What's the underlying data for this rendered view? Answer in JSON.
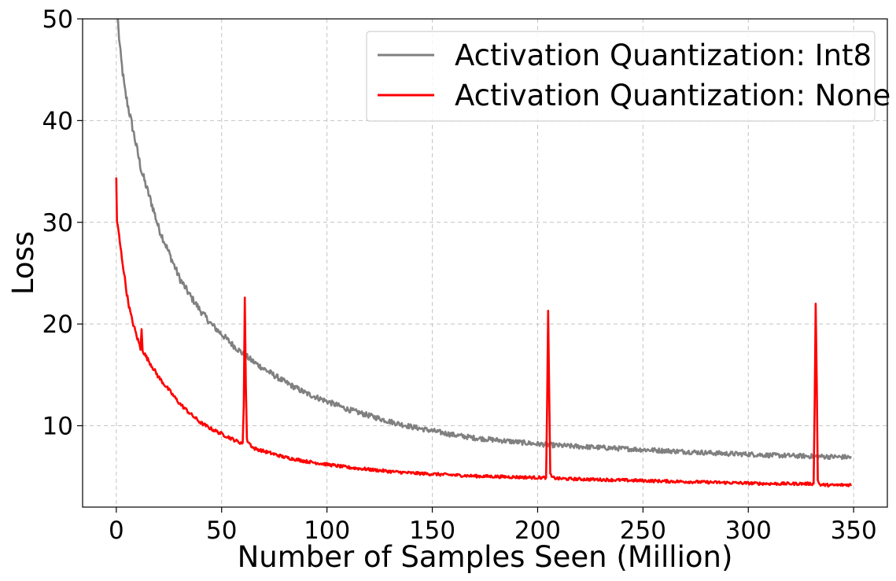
{
  "chart_data": {
    "type": "line",
    "title": "",
    "xlabel": "Number of Samples Seen (Million)",
    "ylabel": "Loss",
    "xlim": [
      -16,
      366
    ],
    "ylim": [
      2,
      50
    ],
    "xticks": [
      0,
      50,
      100,
      150,
      200,
      250,
      300,
      350
    ],
    "yticks": [
      10,
      20,
      30,
      40,
      50
    ],
    "xtick_labels": [
      "0",
      "50",
      "100",
      "150",
      "200",
      "250",
      "300",
      "350"
    ],
    "ytick_labels": [
      "10",
      "20",
      "30",
      "40",
      "50"
    ],
    "grid": true,
    "legend_position": "top-right",
    "series": [
      {
        "name": "Activation Quantization: Int8",
        "color": "#808080",
        "noise": 0.18,
        "points": [
          [
            0.5,
            51
          ],
          [
            1,
            49
          ],
          [
            2,
            46.5
          ],
          [
            4,
            43
          ],
          [
            6,
            41
          ],
          [
            8,
            39
          ],
          [
            10,
            37
          ],
          [
            12,
            35
          ],
          [
            15,
            33
          ],
          [
            18,
            31
          ],
          [
            20,
            29.5
          ],
          [
            25,
            27
          ],
          [
            30,
            24.5
          ],
          [
            35,
            22.8
          ],
          [
            40,
            21.3
          ],
          [
            45,
            20
          ],
          [
            50,
            19
          ],
          [
            55,
            18
          ],
          [
            60,
            17.1
          ],
          [
            65,
            16.3
          ],
          [
            70,
            15.6
          ],
          [
            80,
            14.3
          ],
          [
            90,
            13.2
          ],
          [
            100,
            12.4
          ],
          [
            110,
            11.6
          ],
          [
            120,
            11
          ],
          [
            130,
            10.4
          ],
          [
            140,
            9.9
          ],
          [
            150,
            9.5
          ],
          [
            160,
            9.1
          ],
          [
            170,
            8.8
          ],
          [
            180,
            8.6
          ],
          [
            190,
            8.4
          ],
          [
            200,
            8.2
          ],
          [
            210,
            8.05
          ],
          [
            220,
            7.95
          ],
          [
            230,
            7.85
          ],
          [
            240,
            7.75
          ],
          [
            250,
            7.65
          ],
          [
            260,
            7.55
          ],
          [
            270,
            7.45
          ],
          [
            280,
            7.35
          ],
          [
            290,
            7.25
          ],
          [
            300,
            7.2
          ],
          [
            310,
            7.1
          ],
          [
            320,
            7.05
          ],
          [
            330,
            7.0
          ],
          [
            340,
            6.95
          ],
          [
            349,
            6.9
          ]
        ]
      },
      {
        "name": "Activation Quantization: None",
        "color": "#ff0000",
        "noise": 0.12,
        "points": [
          [
            0,
            34.4
          ],
          [
            0.3,
            30
          ],
          [
            1,
            29.2
          ],
          [
            2,
            27.5
          ],
          [
            3,
            26
          ],
          [
            4,
            24.5
          ],
          [
            5,
            23
          ],
          [
            6,
            21.8
          ],
          [
            7,
            20.8
          ],
          [
            8,
            20
          ],
          [
            9,
            19.3
          ],
          [
            10,
            18.6
          ],
          [
            11,
            18
          ],
          [
            11.5,
            17.4
          ],
          [
            12,
            19.6
          ],
          [
            12.5,
            17.5
          ],
          [
            13,
            17.2
          ],
          [
            15,
            16.5
          ],
          [
            18,
            15.5
          ],
          [
            20,
            14.8
          ],
          [
            25,
            13.5
          ],
          [
            30,
            12.2
          ],
          [
            35,
            11.2
          ],
          [
            40,
            10.3
          ],
          [
            45,
            9.7
          ],
          [
            50,
            9.2
          ],
          [
            55,
            8.7
          ],
          [
            58,
            8.4
          ],
          [
            60,
            8.3
          ],
          [
            60.5,
            12
          ],
          [
            61,
            22.6
          ],
          [
            61.5,
            14
          ],
          [
            62,
            8.6
          ],
          [
            65,
            7.8
          ],
          [
            70,
            7.5
          ],
          [
            80,
            6.9
          ],
          [
            90,
            6.5
          ],
          [
            100,
            6.2
          ],
          [
            110,
            5.9
          ],
          [
            120,
            5.7
          ],
          [
            130,
            5.5
          ],
          [
            140,
            5.35
          ],
          [
            150,
            5.25
          ],
          [
            160,
            5.15
          ],
          [
            170,
            5.05
          ],
          [
            180,
            5.0
          ],
          [
            190,
            4.95
          ],
          [
            200,
            4.9
          ],
          [
            204,
            4.9
          ],
          [
            204.5,
            12
          ],
          [
            205,
            21.3
          ],
          [
            205.5,
            13
          ],
          [
            206,
            5.2
          ],
          [
            207,
            4.9
          ],
          [
            210,
            4.8
          ],
          [
            220,
            4.75
          ],
          [
            230,
            4.7
          ],
          [
            240,
            4.65
          ],
          [
            250,
            4.6
          ],
          [
            260,
            4.55
          ],
          [
            270,
            4.5
          ],
          [
            280,
            4.45
          ],
          [
            290,
            4.4
          ],
          [
            300,
            4.35
          ],
          [
            310,
            4.3
          ],
          [
            320,
            4.3
          ],
          [
            331,
            4.3
          ],
          [
            331.5,
            12
          ],
          [
            332,
            22.0
          ],
          [
            332.5,
            14
          ],
          [
            333,
            4.6
          ],
          [
            334,
            4.2
          ],
          [
            340,
            4.15
          ],
          [
            349,
            4.2
          ]
        ]
      }
    ]
  }
}
